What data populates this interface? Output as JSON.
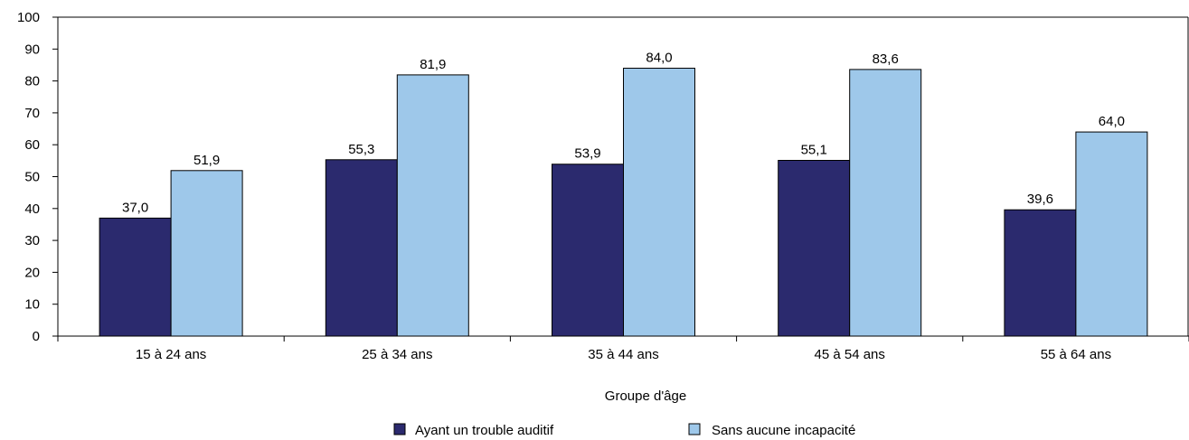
{
  "chart_data": {
    "type": "bar",
    "title": "",
    "xlabel": "Groupe d'âge",
    "ylabel": "",
    "categories": [
      "15 à 24 ans",
      "25 à 34 ans",
      "35 à 44 ans",
      "45 à 54 ans",
      "55 à 64 ans"
    ],
    "series": [
      {
        "name": "Ayant un trouble auditif",
        "values": [
          37.0,
          55.3,
          53.9,
          55.1,
          39.6
        ],
        "labels": [
          "37,0",
          "55,3",
          "53,9",
          "55,1",
          "39,6"
        ],
        "color": "#2b2a6e"
      },
      {
        "name": "Sans aucune incapacité",
        "values": [
          51.9,
          81.9,
          84.0,
          83.6,
          64.0
        ],
        "labels": [
          "51,9",
          "81,9",
          "84,0",
          "83,6",
          "64,0"
        ],
        "color": "#9ec8ea"
      }
    ],
    "ylim": [
      0,
      100
    ],
    "yticks": [
      0,
      10,
      20,
      30,
      40,
      50,
      60,
      70,
      80,
      90,
      100
    ],
    "grid": false,
    "legend_position": "bottom-center"
  }
}
